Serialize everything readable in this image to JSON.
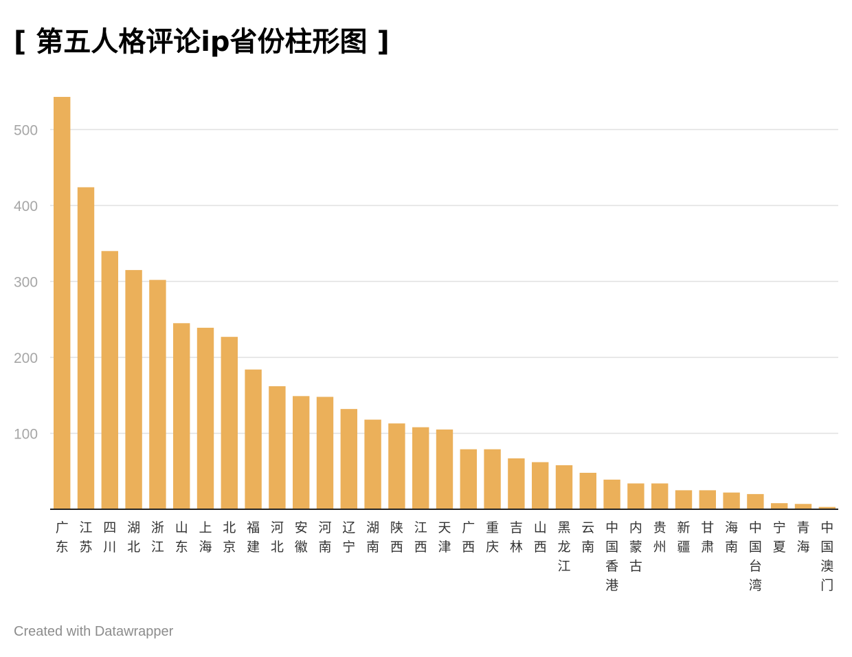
{
  "title": "[ 第五人格评论ip省份柱形图 ]",
  "footer": "Created with Datawrapper",
  "colors": {
    "bar": "#ebb05a",
    "grid": "#e0e0e0",
    "axis": "#222222"
  },
  "chart_data": {
    "type": "bar",
    "title": "[ 第五人格评论ip省份柱形图 ]",
    "xlabel": "",
    "ylabel": "",
    "ylim": [
      0,
      550
    ],
    "yticks": [
      100,
      200,
      300,
      400,
      500
    ],
    "grid": true,
    "categories": [
      "广东",
      "江苏",
      "四川",
      "湖北",
      "浙江",
      "山东",
      "上海",
      "北京",
      "福建",
      "河北",
      "安徽",
      "河南",
      "辽宁",
      "湖南",
      "陕西",
      "江西",
      "天津",
      "广西",
      "重庆",
      "吉林",
      "山西",
      "黑龙江",
      "云南",
      "中国香港",
      "内蒙古",
      "贵州",
      "新疆",
      "甘肃",
      "海南",
      "中国台湾",
      "宁夏",
      "青海",
      "中国澳门"
    ],
    "values": [
      543,
      424,
      340,
      315,
      302,
      245,
      239,
      227,
      184,
      162,
      149,
      148,
      132,
      118,
      113,
      108,
      105,
      79,
      79,
      67,
      62,
      58,
      48,
      39,
      34,
      34,
      25,
      25,
      22,
      20,
      8,
      7,
      3
    ]
  }
}
